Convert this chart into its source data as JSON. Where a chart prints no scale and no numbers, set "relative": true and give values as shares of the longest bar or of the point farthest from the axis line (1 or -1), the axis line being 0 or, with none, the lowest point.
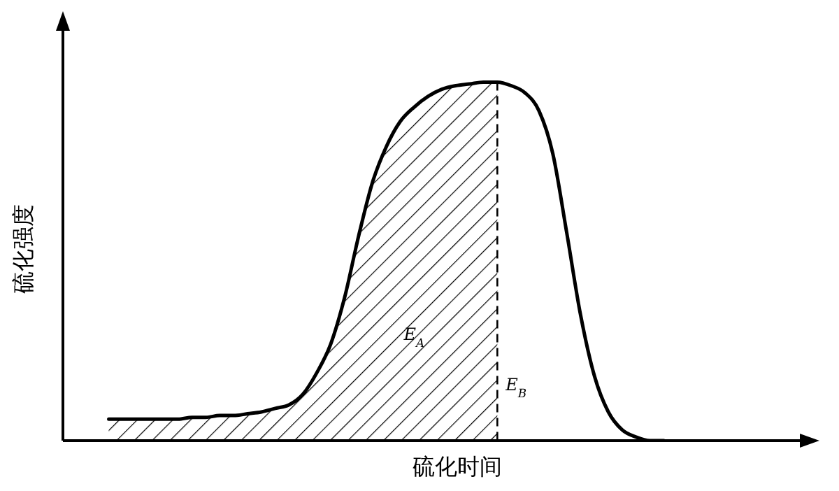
{
  "chart_data": {
    "type": "line",
    "relative": true,
    "xlabel": "硫化时间",
    "ylabel": "硫化强度",
    "marker": "none",
    "categories": [
      null,
      null,
      null,
      null,
      null,
      null,
      null,
      null,
      null,
      null,
      null,
      null,
      null,
      null,
      null,
      null,
      null,
      null,
      null,
      null,
      null,
      null,
      null,
      null,
      null,
      null,
      null,
      null,
      null,
      null,
      null,
      null,
      null,
      null,
      null,
      null,
      null,
      null,
      null,
      null,
      null,
      null,
      null,
      null,
      null,
      null,
      null,
      null,
      null,
      null,
      null,
      null,
      null,
      null
    ],
    "series": [
      {
        "color": "#000000",
        "line_style": "solid",
        "values": [
          null,
          null,
          null,
          0.06,
          0.06,
          0.06,
          0.06,
          0.06,
          0.06,
          0.065,
          0.065,
          0.07,
          0.07,
          0.075,
          0.08,
          0.09,
          0.1,
          0.13,
          0.19,
          0.27,
          0.4,
          0.57,
          0.72,
          0.82,
          0.89,
          0.93,
          0.96,
          0.98,
          0.99,
          0.995,
          1,
          1,
          0.99,
          0.97,
          0.92,
          0.8,
          0.58,
          0.35,
          0.18,
          0.08,
          0.03,
          0.01,
          0,
          0,
          null,
          null,
          null,
          null,
          null,
          null,
          null,
          null,
          null,
          null
        ]
      },
      {
        "type": "area",
        "color": "#000000",
        "line_style": "dashed",
        "values": [
          null,
          null,
          null,
          0.06,
          0.06,
          0.06,
          0.06,
          0.06,
          0.06,
          0.065,
          0.065,
          0.07,
          0.07,
          0.075,
          0.08,
          0.09,
          0.1,
          0.13,
          0.19,
          0.27,
          0.4,
          0.57,
          0.72,
          0.82,
          0.89,
          0.93,
          0.96,
          0.98,
          0.99,
          0.995,
          1,
          1,
          null,
          null,
          null,
          null,
          null,
          null,
          null,
          null,
          null,
          null,
          null,
          null,
          null,
          null,
          null,
          null,
          null,
          null,
          null,
          null,
          null,
          null
        ]
      }
    ],
    "annotations": [
      "E$_{A}$",
      "E$_{B}$"
    ]
  }
}
